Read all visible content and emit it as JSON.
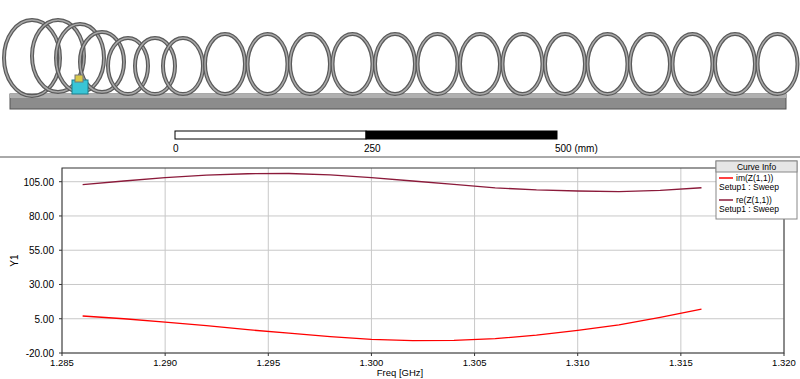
{
  "chart_data": {
    "type": "line",
    "x_label": "Freq [GHz]",
    "y_label": "Y1",
    "legend_title": "Curve Info",
    "legend": "upper right",
    "grid": true,
    "xlim": [
      1.285,
      1.32
    ],
    "xticks": [
      1.285,
      {
        "value": 1.29,
        "label": "1.290"
      },
      1.295,
      {
        "value": 1.3,
        "label": "1.300"
      },
      1.305,
      {
        "value": 1.31,
        "label": "1.310"
      },
      1.315,
      {
        "value": 1.32,
        "label": "1.320"
      }
    ],
    "ylim": [
      -20,
      115
    ],
    "yticks": [
      {
        "value": -20,
        "label": "-20.00"
      },
      {
        "value": 5,
        "label": "5.00"
      },
      {
        "value": 30,
        "label": "30.00"
      },
      {
        "value": 55,
        "label": "55.00"
      },
      {
        "value": 80,
        "label": "80.00"
      },
      {
        "value": 105,
        "label": "105.00"
      }
    ],
    "x": [
      1.286,
      1.288,
      1.29,
      1.292,
      1.294,
      1.296,
      1.298,
      1.3,
      1.302,
      1.304,
      1.306,
      1.308,
      1.31,
      1.312,
      1.314,
      1.316
    ],
    "series": [
      {
        "name": "im(Z(1,1))",
        "setup": "Setup1 : Sweep",
        "color": "#ff0000",
        "values": [
          7,
          5,
          2.5,
          0,
          -3,
          -5.5,
          -8,
          -10,
          -11,
          -10.8,
          -9.5,
          -7,
          -3.5,
          0.5,
          6,
          12
        ]
      },
      {
        "name": "re(Z(1,1))",
        "setup": "Setup1 : Sweep",
        "color": "#8b1a3a",
        "values": [
          102.8,
          105.5,
          108,
          109.8,
          110.8,
          111,
          110,
          108,
          105.5,
          103,
          100.5,
          99,
          98.2,
          97.8,
          98.6,
          100.6
        ]
      }
    ]
  },
  "scale_bar": {
    "ticks": [
      0,
      250,
      {
        "value": 500,
        "label": "500 (mm)"
      }
    ]
  }
}
